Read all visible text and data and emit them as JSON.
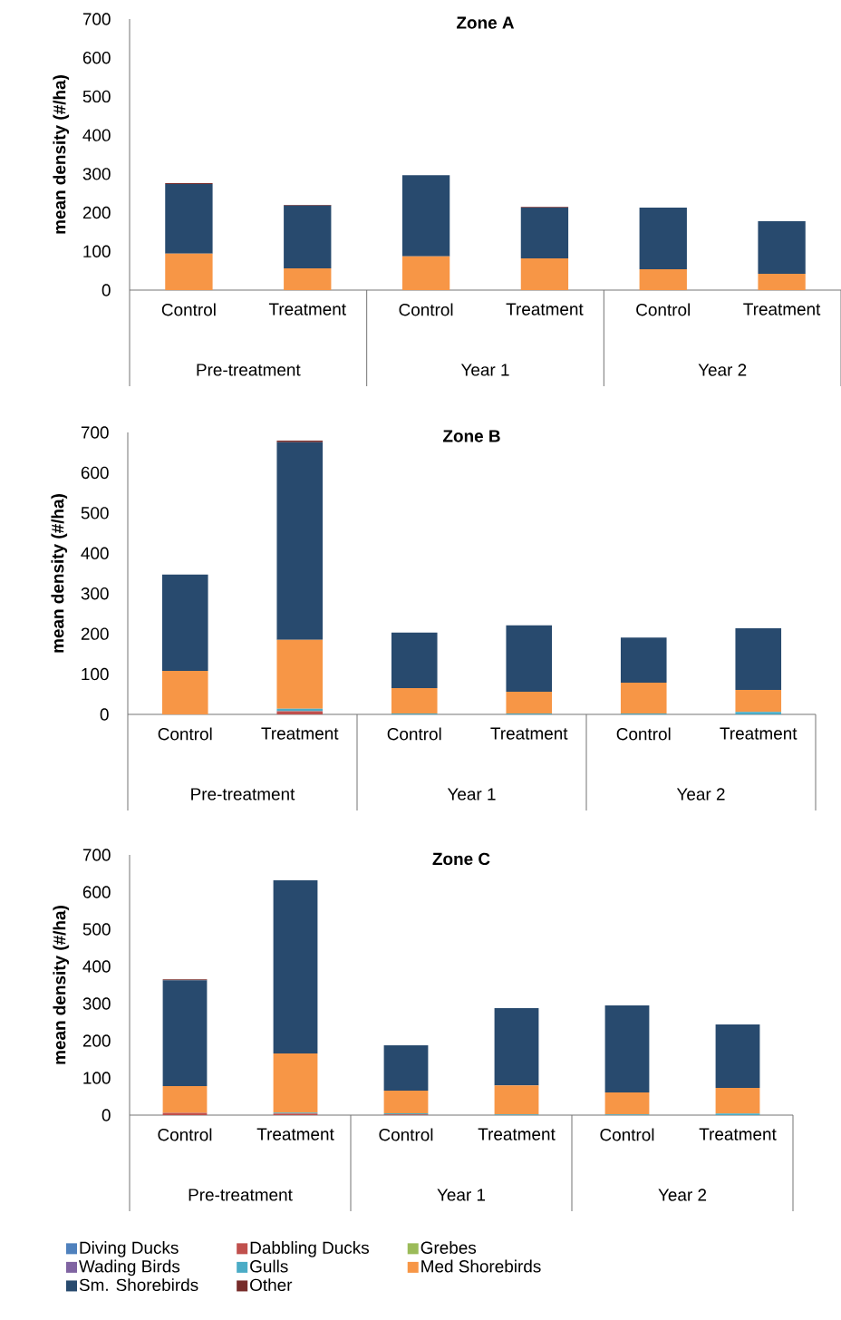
{
  "chart_data": [
    {
      "type": "bar",
      "title": "Zone A",
      "ylabel": "mean density (#/ha)",
      "categories": [
        "Control",
        "Treatment",
        "Control",
        "Treatment",
        "Control",
        "Treatment"
      ],
      "stacked": true,
      "ylim": [
        0,
        700
      ],
      "yticks": [
        0,
        100,
        200,
        300,
        400,
        500,
        600,
        700
      ],
      "annotations": [
        "Pre-treatment",
        "Year 1",
        "Year 2"
      ],
      "series": [
        {
          "color": "#4f81bd",
          "values": [
            0,
            0,
            0,
            0,
            0,
            0
          ]
        },
        {
          "color": "#c0504d",
          "values": [
            0,
            0,
            0,
            0,
            0,
            0
          ]
        },
        {
          "color": "#9bbb59",
          "values": [
            0,
            0,
            0,
            0,
            0,
            0
          ]
        },
        {
          "color": "#8064a2",
          "values": [
            0,
            0,
            0,
            0,
            0,
            0
          ]
        },
        {
          "color": "#4bacc6",
          "values": [
            0,
            0,
            0,
            0,
            0,
            0
          ]
        },
        {
          "color": "#f79646",
          "values": [
            94,
            56,
            87,
            82,
            54,
            42
          ]
        },
        {
          "color": "#284a6e",
          "values": [
            180,
            162,
            210,
            131,
            159,
            136
          ]
        },
        {
          "color": "#772c2a",
          "values": [
            2,
            2,
            0,
            2,
            0,
            0
          ]
        }
      ]
    },
    {
      "type": "bar",
      "title": "Zone B",
      "ylabel": "mean density (#/ha)",
      "categories": [
        "Control",
        "Treatment",
        "Control",
        "Treatment",
        "Control",
        "Treatment"
      ],
      "stacked": true,
      "ylim": [
        0,
        700
      ],
      "yticks": [
        0,
        100,
        200,
        300,
        400,
        500,
        600,
        700
      ],
      "annotations": [
        "Pre-treatment",
        "Year 1",
        "Year 2"
      ],
      "series": [
        {
          "color": "#4f81bd",
          "values": [
            0,
            0,
            0,
            0,
            0,
            0
          ]
        },
        {
          "color": "#c0504d",
          "values": [
            0,
            8,
            0,
            0,
            0,
            0
          ]
        },
        {
          "color": "#9bbb59",
          "values": [
            0,
            0,
            0,
            0,
            0,
            0
          ]
        },
        {
          "color": "#8064a2",
          "values": [
            0,
            0,
            0,
            0,
            0,
            0
          ]
        },
        {
          "color": "#4bacc6",
          "values": [
            0,
            6,
            2,
            2,
            2,
            6
          ]
        },
        {
          "color": "#f79646",
          "values": [
            108,
            171,
            63,
            54,
            77,
            55
          ]
        },
        {
          "color": "#284a6e",
          "values": [
            239,
            491,
            138,
            165,
            112,
            153
          ]
        },
        {
          "color": "#772c2a",
          "values": [
            0,
            4,
            0,
            0,
            0,
            0
          ]
        }
      ]
    },
    {
      "type": "bar",
      "title": "Zone C",
      "ylabel": "mean density (#/ha)",
      "categories": [
        "Control",
        "Treatment",
        "Control",
        "Treatment",
        "Control",
        "Treatment"
      ],
      "stacked": true,
      "ylim": [
        0,
        700
      ],
      "yticks": [
        0,
        100,
        200,
        300,
        400,
        500,
        600,
        700
      ],
      "annotations": [
        "Pre-treatment",
        "Year 1",
        "Year 2"
      ],
      "legend": "bottom",
      "series": [
        {
          "name": "Diving Ducks",
          "color": "#4f81bd",
          "values": [
            0,
            0,
            0,
            0,
            0,
            0
          ]
        },
        {
          "name": "Dabbling Ducks",
          "color": "#c0504d",
          "values": [
            6,
            4,
            2,
            0,
            0,
            0
          ]
        },
        {
          "name": "Grebes",
          "color": "#9bbb59",
          "values": [
            0,
            0,
            0,
            0,
            0,
            0
          ]
        },
        {
          "name": "Wading Birds",
          "color": "#8064a2",
          "values": [
            0,
            0,
            0,
            0,
            0,
            0
          ]
        },
        {
          "name": "Gulls",
          "color": "#4bacc6",
          "values": [
            0,
            3,
            3,
            2,
            2,
            4
          ]
        },
        {
          "name": "Med Shorebirds",
          "color": "#f79646",
          "values": [
            72,
            159,
            61,
            78,
            59,
            69
          ]
        },
        {
          "name": "Sm. Shorebirds",
          "color": "#284a6e",
          "values": [
            285,
            466,
            122,
            208,
            234,
            171
          ]
        },
        {
          "name": "Other",
          "color": "#772c2a",
          "values": [
            2,
            0,
            0,
            0,
            0,
            0
          ]
        }
      ]
    }
  ]
}
